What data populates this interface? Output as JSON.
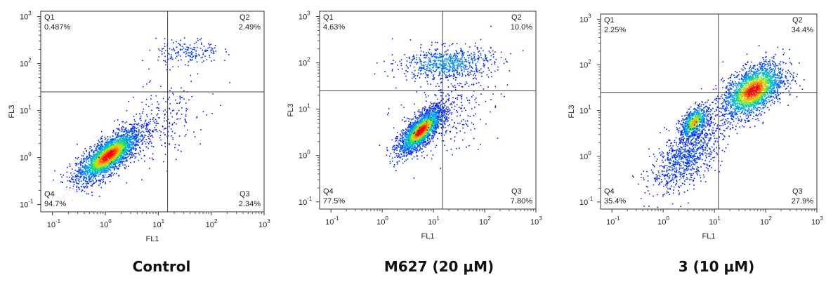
{
  "chart_data": [
    {
      "type": "scatter",
      "xlabel": "FL1",
      "ylabel": "FL3",
      "x_scale": "log",
      "y_scale": "log",
      "xlim": [
        0.06,
        1000
      ],
      "ylim": [
        0.07,
        1300
      ],
      "gate": {
        "x": 15,
        "y": 25
      },
      "x_ticks": [
        {
          "base": "10",
          "exp": "-1",
          "value": 0.1
        },
        {
          "base": "10",
          "exp": "0",
          "value": 1
        },
        {
          "base": "10",
          "exp": "1",
          "value": 10
        },
        {
          "base": "10",
          "exp": "2",
          "value": 100
        },
        {
          "base": "10",
          "exp": "3",
          "value": 1000
        }
      ],
      "y_ticks": [
        {
          "base": "10",
          "exp": "-1",
          "value": 0.1
        },
        {
          "base": "10",
          "exp": "0",
          "value": 1
        },
        {
          "base": "10",
          "exp": "1",
          "value": 10
        },
        {
          "base": "10",
          "exp": "2",
          "value": 100
        },
        {
          "base": "10",
          "exp": "3",
          "value": 1000
        }
      ],
      "quadrants": [
        {
          "name": "Q1",
          "percent": "0.487%",
          "position": "top-left"
        },
        {
          "name": "Q2",
          "percent": "2.49%",
          "position": "top-right"
        },
        {
          "name": "Q3",
          "percent": "2.34%",
          "position": "bottom-right"
        },
        {
          "name": "Q4",
          "percent": "94.7%",
          "position": "bottom-left"
        }
      ],
      "caption": "Control"
    },
    {
      "type": "scatter",
      "xlabel": "FL1",
      "ylabel": "FL3",
      "x_scale": "log",
      "y_scale": "log",
      "xlim": [
        0.06,
        1000
      ],
      "ylim": [
        0.07,
        1300
      ],
      "gate": {
        "x": 15,
        "y": 25
      },
      "x_ticks": [
        {
          "base": "10",
          "exp": "-1",
          "value": 0.1
        },
        {
          "base": "10",
          "exp": "0",
          "value": 1
        },
        {
          "base": "10",
          "exp": "1",
          "value": 10
        },
        {
          "base": "10",
          "exp": "2",
          "value": 100
        },
        {
          "base": "10",
          "exp": "3",
          "value": 1000
        }
      ],
      "y_ticks": [
        {
          "base": "10",
          "exp": "-1",
          "value": 0.1
        },
        {
          "base": "10",
          "exp": "0",
          "value": 1
        },
        {
          "base": "10",
          "exp": "1",
          "value": 10
        },
        {
          "base": "10",
          "exp": "2",
          "value": 100
        },
        {
          "base": "10",
          "exp": "3",
          "value": 1000
        }
      ],
      "quadrants": [
        {
          "name": "Q1",
          "percent": "4.63%",
          "position": "top-left"
        },
        {
          "name": "Q2",
          "percent": "10.0%",
          "position": "top-right"
        },
        {
          "name": "Q3",
          "percent": "7.80%",
          "position": "bottom-right"
        },
        {
          "name": "Q4",
          "percent": "77.5%",
          "position": "bottom-left"
        }
      ],
      "caption": "M627 (20 μM)"
    },
    {
      "type": "scatter",
      "xlabel": "FL1",
      "ylabel": "FL3",
      "x_scale": "log",
      "y_scale": "log",
      "xlim": [
        0.06,
        1000
      ],
      "ylim": [
        0.07,
        1300
      ],
      "gate": {
        "x": 12,
        "y": 25
      },
      "x_ticks": [
        {
          "base": "10",
          "exp": "-1",
          "value": 0.1
        },
        {
          "base": "10",
          "exp": "0",
          "value": 1
        },
        {
          "base": "10",
          "exp": "1",
          "value": 10
        },
        {
          "base": "10",
          "exp": "2",
          "value": 100
        },
        {
          "base": "10",
          "exp": "3",
          "value": 1000
        }
      ],
      "y_ticks": [
        {
          "base": "10",
          "exp": "-1",
          "value": 0.1
        },
        {
          "base": "10",
          "exp": "0",
          "value": 1
        },
        {
          "base": "10",
          "exp": "1",
          "value": 10
        },
        {
          "base": "10",
          "exp": "2",
          "value": 100
        },
        {
          "base": "10",
          "exp": "3",
          "value": 1000
        }
      ],
      "quadrants": [
        {
          "name": "Q1",
          "percent": "2.25%",
          "position": "top-left"
        },
        {
          "name": "Q2",
          "percent": "34.4%",
          "position": "top-right"
        },
        {
          "name": "Q3",
          "percent": "27.9%",
          "position": "bottom-right"
        },
        {
          "name": "Q4",
          "percent": "35.4%",
          "position": "bottom-left"
        }
      ],
      "caption": "3 (10 μM)"
    }
  ]
}
